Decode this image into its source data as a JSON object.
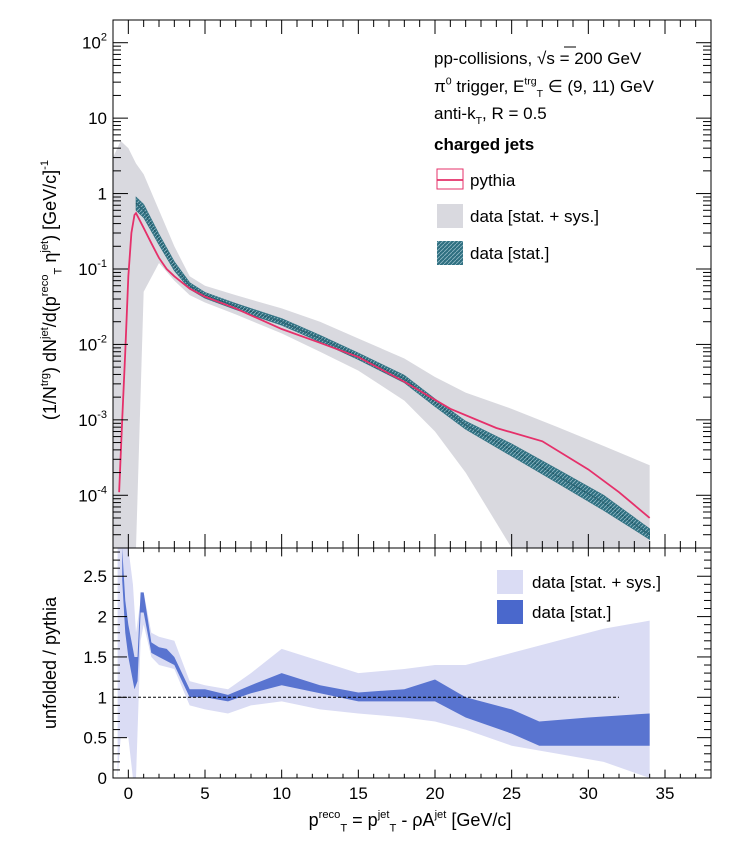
{
  "chart_data": [
    {
      "type": "line",
      "panel": "top",
      "yscale": "log",
      "ylim": [
        2e-05,
        200
      ],
      "xlim": [
        -1,
        38
      ],
      "y_ticks": [
        0.0001,
        0.001,
        0.01,
        0.1,
        1,
        10,
        100
      ],
      "y_tick_labels": [
        {
          "base": "10",
          "exp": "-4"
        },
        {
          "base": "10",
          "exp": "-3"
        },
        {
          "base": "10",
          "exp": "-2"
        },
        {
          "base": "10",
          "exp": "-1"
        },
        {
          "base": "1",
          "exp": ""
        },
        {
          "base": "10",
          "exp": ""
        },
        {
          "base": "10",
          "exp": "2"
        }
      ],
      "ylabel_parts": [
        {
          "t": "(1/N",
          "s": "n"
        },
        {
          "t": "trg",
          "s": "sup"
        },
        {
          "t": ") dN",
          "s": "n"
        },
        {
          "t": "jet",
          "s": "sup"
        },
        {
          "t": "/d(p",
          "s": "n"
        },
        {
          "t": "reco",
          "s": "sup"
        },
        {
          "t": "T",
          "s": "sub"
        },
        {
          "t": " η",
          "s": "n"
        },
        {
          "t": "jet",
          "s": "sup"
        },
        {
          "t": ") [GeV/c]",
          "s": "n"
        },
        {
          "t": "-1",
          "s": "sup"
        }
      ],
      "info_lines": [
        [
          {
            "t": "pp-collisions, ",
            "s": "n"
          },
          {
            "t": "√s",
            "s": "n"
          },
          {
            "t": " = 200 GeV",
            "s": "n"
          }
        ],
        [
          {
            "t": "π",
            "s": "n"
          },
          {
            "t": "0",
            "s": "sup"
          },
          {
            "t": " trigger, E",
            "s": "n"
          },
          {
            "t": "trg",
            "s": "sup"
          },
          {
            "t": "T",
            "s": "sub"
          },
          {
            "t": " ∈ (9, 11) GeV",
            "s": "n"
          }
        ],
        [
          {
            "t": "anti-k",
            "s": "n"
          },
          {
            "t": "T",
            "s": "sub"
          },
          {
            "t": ", R = 0.5",
            "s": "n"
          }
        ],
        [
          {
            "t": "charged jets",
            "s": "b"
          }
        ]
      ],
      "legend": [
        {
          "label": "pythia",
          "kind": "line",
          "color": "#e5306a"
        },
        {
          "label": "data [stat. + sys.]",
          "kind": "band",
          "color": "#d9d9df"
        },
        {
          "label": "data [stat.]",
          "kind": "hatch",
          "color": "#2e6f80"
        }
      ],
      "series": [
        {
          "name": "pythia",
          "color": "#e5306a",
          "x": [
            -0.6,
            -0.4,
            -0.2,
            0.0,
            0.2,
            0.4,
            0.5,
            1.0,
            1.5,
            2.0,
            2.5,
            3.0,
            4.0,
            5.0,
            7.0,
            10.0,
            12.5,
            15.0,
            18.0,
            21.0,
            24.0,
            27.0,
            30.0,
            32.0,
            34.0
          ],
          "y": [
            0.00011,
            0.001,
            0.008,
            0.08,
            0.3,
            0.52,
            0.55,
            0.35,
            0.22,
            0.14,
            0.1,
            0.08,
            0.055,
            0.043,
            0.03,
            0.016,
            0.0105,
            0.0068,
            0.0032,
            0.0014,
            0.00078,
            0.00052,
            0.00022,
            0.00011,
            5e-05
          ]
        },
        {
          "name": "data [stat.]",
          "color": "#2e6f80",
          "x": [
            0.5,
            1.0,
            2.0,
            3.0,
            4.0,
            5.0,
            7.0,
            10.0,
            12.5,
            15.0,
            18.0,
            20.0,
            22.0,
            25.0,
            28.0,
            31.0,
            34.0
          ],
          "y": [
            0.75,
            0.6,
            0.25,
            0.11,
            0.06,
            0.045,
            0.032,
            0.02,
            0.012,
            0.007,
            0.0035,
            0.0017,
            0.00085,
            0.0004,
            0.00018,
            8e-05,
            3e-05
          ],
          "y_low": [
            0.6,
            0.48,
            0.21,
            0.095,
            0.054,
            0.041,
            0.029,
            0.018,
            0.0108,
            0.0063,
            0.0031,
            0.0015,
            0.00075,
            0.00033,
            0.000145,
            6.3e-05,
            2.6e-05
          ],
          "y_high": [
            0.9,
            0.72,
            0.29,
            0.125,
            0.066,
            0.049,
            0.035,
            0.022,
            0.0132,
            0.0077,
            0.0039,
            0.0019,
            0.00096,
            0.00048,
            0.00022,
            0.0001,
            3.6e-05
          ]
        },
        {
          "name": "data [stat. + sys.]",
          "color": "#d9d9df",
          "x": [
            -1.0,
            -0.5,
            0.0,
            0.5,
            1.0,
            2.0,
            3.0,
            4.0,
            5.0,
            7.0,
            10.0,
            12.5,
            15.0,
            18.0,
            20.0,
            22.0,
            25.0,
            28.0,
            31.0,
            34.0
          ],
          "y_low": [
            2e-05,
            2e-05,
            2e-05,
            2e-05,
            0.05,
            0.12,
            0.07,
            0.045,
            0.036,
            0.025,
            0.014,
            0.008,
            0.0045,
            0.0018,
            0.0007,
            0.0002,
            2e-05,
            2e-05,
            2e-05,
            2e-05
          ],
          "y_high": [
            3,
            5,
            4,
            2.5,
            1.8,
            0.6,
            0.2,
            0.08,
            0.06,
            0.045,
            0.03,
            0.02,
            0.012,
            0.0065,
            0.0037,
            0.0023,
            0.0014,
            0.0008,
            0.00045,
            0.00025
          ]
        }
      ]
    },
    {
      "type": "area",
      "panel": "bottom",
      "ylabel": "unfolded / pythia",
      "xlabel_parts": [
        {
          "t": "p",
          "s": "n"
        },
        {
          "t": "reco",
          "s": "sup"
        },
        {
          "t": "T",
          "s": "sub"
        },
        {
          "t": " = p",
          "s": "n"
        },
        {
          "t": "jet",
          "s": "sup"
        },
        {
          "t": "T",
          "s": "sub"
        },
        {
          "t": " - ρA",
          "s": "n"
        },
        {
          "t": "jet",
          "s": "sup"
        },
        {
          "t": " [GeV/c]",
          "s": "n"
        }
      ],
      "xlim": [
        -1,
        38
      ],
      "ylim": [
        0,
        2.85
      ],
      "x_ticks": [
        0,
        5,
        10,
        15,
        20,
        25,
        30,
        35
      ],
      "x_tick_labels": [
        "0",
        "5",
        "10",
        "15",
        "20",
        "25",
        "30",
        "35"
      ],
      "y_ticks": [
        0,
        0.5,
        1,
        1.5,
        2,
        2.5
      ],
      "y_tick_labels": [
        "0",
        "0.5",
        "1",
        "1.5",
        "2",
        "2.5"
      ],
      "reference_line": {
        "y": 1,
        "x_from": -1,
        "x_to": 32,
        "style": "dashed"
      },
      "legend": [
        {
          "label": "data [stat. + sys.]",
          "kind": "band",
          "color": "#dadcf4"
        },
        {
          "label": "data [stat.]",
          "kind": "band",
          "color": "#4a68cc"
        }
      ],
      "series": [
        {
          "name": "data [stat. + sys.]",
          "color": "#dadcf4",
          "x": [
            -0.7,
            -0.5,
            0.0,
            0.3,
            0.5,
            0.8,
            1.0,
            1.5,
            2.0,
            3.0,
            4.0,
            5.0,
            6.5,
            8.0,
            10.0,
            12.5,
            15.0,
            18.0,
            20.0,
            22.0,
            25.0,
            28.0,
            31.0,
            34.0
          ],
          "y_low": [
            0.0,
            0.5,
            0.5,
            0.0,
            0.0,
            1.7,
            1.9,
            1.5,
            1.4,
            1.35,
            0.9,
            0.85,
            0.8,
            0.9,
            0.95,
            0.85,
            0.8,
            0.75,
            0.7,
            0.6,
            0.4,
            0.3,
            0.2,
            0.0
          ],
          "y_high": [
            2.85,
            2.85,
            2.85,
            2.4,
            1.8,
            2.2,
            2.3,
            1.8,
            1.75,
            1.7,
            1.2,
            1.15,
            1.1,
            1.3,
            1.6,
            1.45,
            1.3,
            1.35,
            1.4,
            1.4,
            1.55,
            1.7,
            1.85,
            1.95
          ]
        },
        {
          "name": "data [stat.]",
          "color": "#4a68cc",
          "x": [
            -0.4,
            -0.2,
            0.0,
            0.2,
            0.4,
            0.6,
            0.8,
            1.0,
            1.5,
            2.0,
            2.5,
            3.0,
            4.0,
            5.0,
            6.5,
            8.0,
            10.0,
            12.5,
            15.0,
            18.0,
            20.0,
            22.0,
            25.0,
            26.8,
            30.0,
            34.0
          ],
          "y_low": [
            2.45,
            1.8,
            1.5,
            1.3,
            1.1,
            1.2,
            2.05,
            2.05,
            1.55,
            1.5,
            1.45,
            1.4,
            1.0,
            1.0,
            0.95,
            1.05,
            1.15,
            1.05,
            0.95,
            0.95,
            0.95,
            0.75,
            0.55,
            0.4,
            0.4,
            0.4
          ],
          "y_high": [
            2.85,
            2.2,
            1.9,
            1.7,
            1.5,
            1.5,
            2.3,
            2.3,
            1.68,
            1.62,
            1.6,
            1.5,
            1.1,
            1.1,
            1.03,
            1.15,
            1.3,
            1.15,
            1.06,
            1.1,
            1.22,
            1.0,
            0.85,
            0.7,
            0.75,
            0.8
          ]
        }
      ]
    }
  ]
}
